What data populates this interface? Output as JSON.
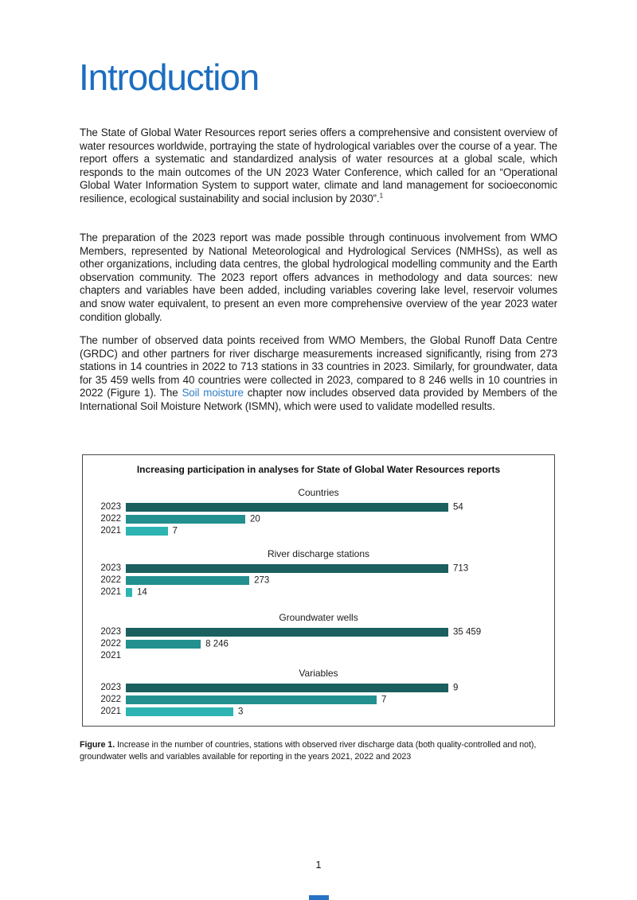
{
  "heading": {
    "title": "Introduction"
  },
  "paragraphs": {
    "p1": {
      "text": "The State of Global Water Resources report series offers a comprehensive and consistent overview of water resources worldwide, portraying the state of hydrological variables over the course of a year. The report offers a systematic and standardized analysis of water resources at a global scale, which responds to the main outcomes of the UN 2023 Water Conference, which called for an “Operational Global Water Information System to support water, climate and land management for socioeconomic resilience, ecological sustainability and social inclusion by 2030”.",
      "footnote_ref": "1"
    },
    "p2": {
      "text": "The preparation of the 2023 report was made possible through continuous involvement from WMO Members, represented by National Meteorological and Hydrological Services (NMHSs), as well as other organizations, including data centres, the global hydrological modelling community and the Earth observation community. The 2023 report offers advances in methodology and data sources: new chapters and variables have been added, including variables covering lake level, reservoir volumes and snow water equivalent, to present an even more comprehensive overview of the year 2023 water condition globally."
    },
    "p3": {
      "before_link": "The number of observed data points received from WMO Members, the Global Runoff Data Centre (GRDC) and other partners for river discharge measurements increased significantly, rising from 273 stations in 14 countries in 2022 to 713 stations in 33 countries in 2023. Similarly, for groundwater, data for 35 459 wells from 40 countries were collected in 2023, compared to 8 246 wells in 10 countries in 2022 (Figure 1). The ",
      "link": "Soil moisture",
      "after_link": " chapter now includes observed data provided by Members of the International Soil Moisture Network (ISMN), which were used to validate modelled results."
    }
  },
  "chart_data": {
    "type": "bar",
    "orientation": "horizontal",
    "title": "Increasing participation in analyses for State of Global Water Resources reports",
    "categories": [
      "2023",
      "2022",
      "2021"
    ],
    "legend_position": "none",
    "grid": false,
    "groups": [
      {
        "title": "Countries",
        "max": 54,
        "rows": [
          {
            "year": "2023",
            "value": 54,
            "label": "54"
          },
          {
            "year": "2022",
            "value": 20,
            "label": "20"
          },
          {
            "year": "2021",
            "value": 7,
            "label": "7"
          }
        ]
      },
      {
        "title": "River discharge stations",
        "max": 713,
        "rows": [
          {
            "year": "2023",
            "value": 713,
            "label": "713"
          },
          {
            "year": "2022",
            "value": 273,
            "label": "273"
          },
          {
            "year": "2021",
            "value": 14,
            "label": "14"
          }
        ]
      },
      {
        "title": "Groundwater wells",
        "max": 35459,
        "rows": [
          {
            "year": "2023",
            "value": 35459,
            "label": "35 459"
          },
          {
            "year": "2022",
            "value": 8246,
            "label": "8 246"
          },
          {
            "year": "2021",
            "value": 0,
            "label": ""
          }
        ]
      },
      {
        "title": "Variables",
        "max": 9,
        "rows": [
          {
            "year": "2023",
            "value": 9,
            "label": "9"
          },
          {
            "year": "2022",
            "value": 7,
            "label": "7"
          },
          {
            "year": "2021",
            "value": 3,
            "label": "3"
          }
        ]
      }
    ],
    "colors": {
      "2023": "#1B5F5F",
      "2022": "#238F8F",
      "2021": "#2DB4B2"
    }
  },
  "caption": {
    "label": "Figure 1.",
    "text": " Increase in the number of countries, stations with observed river discharge data (both quality-controlled and not), groundwater wells and variables available for reporting in the years 2021, 2022 and 2023"
  },
  "footer": {
    "page_number": "1"
  },
  "colors": {
    "heading": "#1B6DC1",
    "link": "#2F7DC5",
    "figure_border": "#4A4A4A",
    "footer_marker": "#2673C4"
  }
}
